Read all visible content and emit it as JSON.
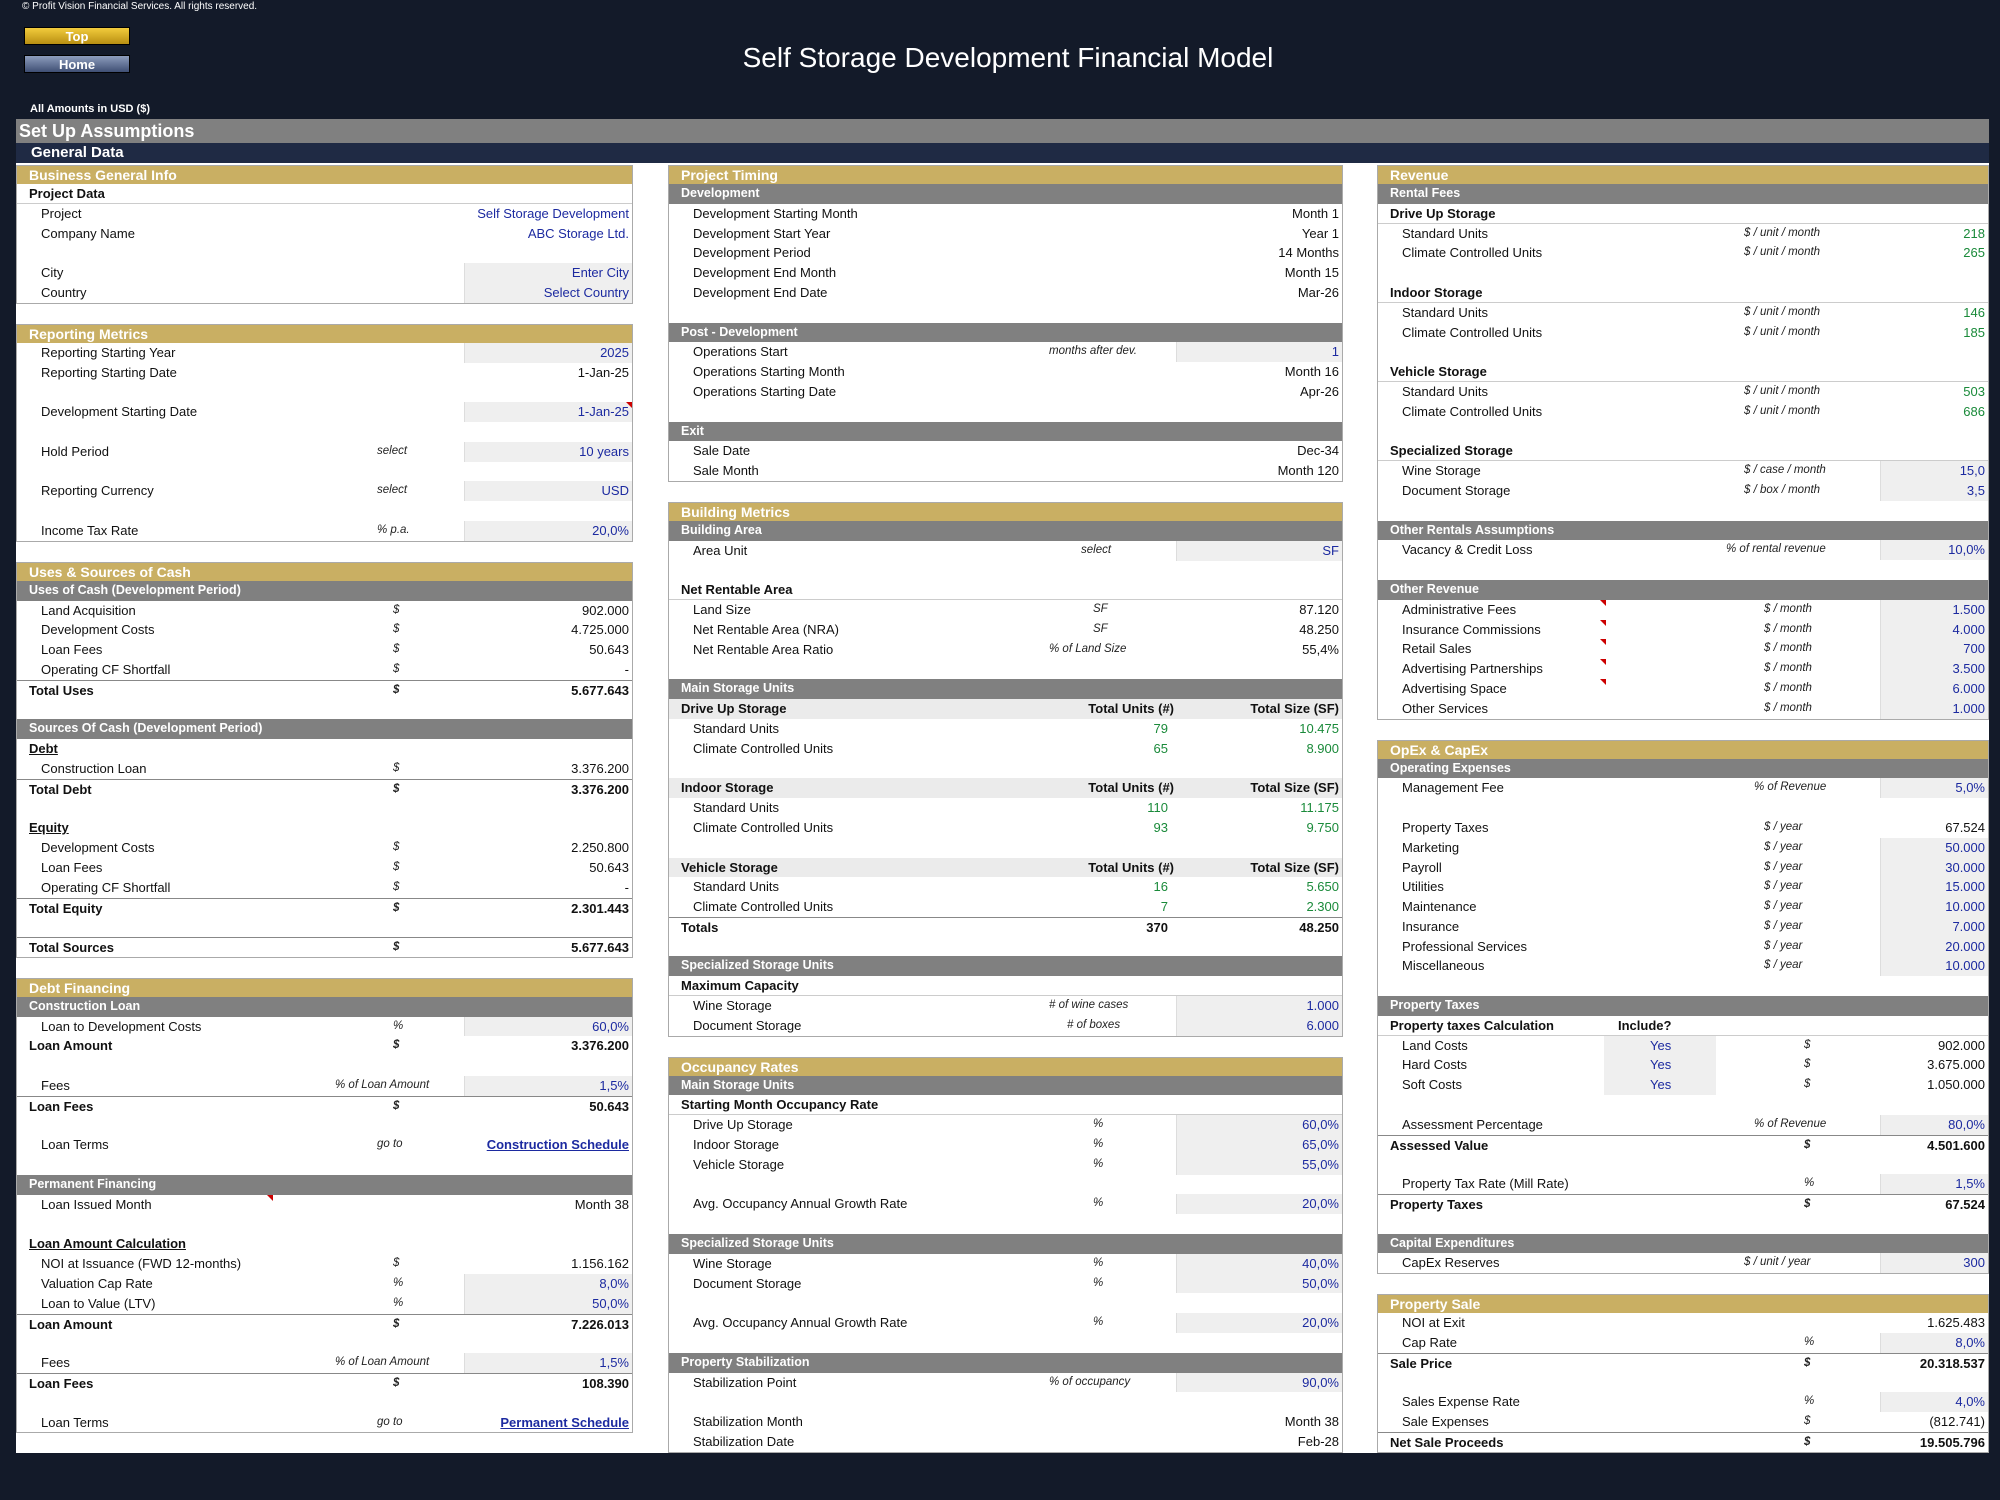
{
  "copyright": "© Profit Vision Financial Services. All rights reserved.",
  "nav": {
    "top": "Top",
    "home": "Home"
  },
  "title": "Self Storage Development Financial Model",
  "amounts": "All Amounts in  USD ($)",
  "band1": "Set Up Assumptions",
  "band2": "General Data",
  "business": {
    "header": "Business General Info",
    "project_data": "Project Data",
    "project_label": "Project",
    "project_value": "Self Storage Development",
    "company_label": "Company Name",
    "company_value": "ABC Storage Ltd.",
    "city_label": "City",
    "city_value": "Enter City",
    "country_label": "Country",
    "country_value": "Select Country"
  },
  "reporting": {
    "header": "Reporting Metrics",
    "start_year_label": "Reporting Starting Year",
    "start_year": "2025",
    "start_date_label": "Reporting Starting Date",
    "start_date": "1-Jan-25",
    "dev_date_label": "Development Starting Date",
    "dev_date": "1-Jan-25",
    "hold_label": "Hold Period",
    "hold_unit": "select",
    "hold": "10 years",
    "currency_label": "Reporting Currency",
    "currency_unit": "select",
    "currency": "USD",
    "tax_label": "Income Tax Rate",
    "tax_unit": "% p.a.",
    "tax": "20,0%"
  },
  "uses": {
    "header": "Uses & Sources of Cash",
    "uses_sub": "Uses of Cash (Development Period)",
    "items": [
      {
        "label": "Land Acquisition",
        "unit": "$",
        "value": "902.000"
      },
      {
        "label": "Development Costs",
        "unit": "$",
        "value": "4.725.000"
      },
      {
        "label": "Loan Fees",
        "unit": "$",
        "value": "50.643"
      },
      {
        "label": "Operating CF Shortfall",
        "unit": "$",
        "value": "-"
      }
    ],
    "total_label": "Total Uses",
    "total_unit": "$",
    "total": "5.677.643",
    "sources_sub": "Sources Of Cash (Development Period)",
    "debt": "Debt",
    "loan_label": "Construction Loan",
    "loan_unit": "$",
    "loan": "3.376.200",
    "total_debt_label": "Total Debt",
    "total_debt_unit": "$",
    "total_debt": "3.376.200",
    "equity": "Equity",
    "equity_items": [
      {
        "label": "Development Costs",
        "unit": "$",
        "value": "2.250.800"
      },
      {
        "label": "Loan Fees",
        "unit": "$",
        "value": "50.643"
      },
      {
        "label": "Operating CF Shortfall",
        "unit": "$",
        "value": "-"
      }
    ],
    "total_equity_label": "Total Equity",
    "total_equity_unit": "$",
    "total_equity": "2.301.443",
    "total_sources_label": "Total Sources",
    "total_sources_unit": "$",
    "total_sources": "5.677.643"
  },
  "debt": {
    "header": "Debt Financing",
    "construction": "Construction Loan",
    "ltdc_label": "Loan to Development Costs",
    "ltdc_unit": "%",
    "ltdc": "60,0%",
    "amount_label": "Loan Amount",
    "amount_unit": "$",
    "amount": "3.376.200",
    "fees_label": "Fees",
    "fees_unit": "% of Loan Amount",
    "fees": "1,5%",
    "loan_fees_label": "Loan Fees",
    "loan_fees_unit": "$",
    "loan_fees": "50.643",
    "terms_label": "Loan Terms",
    "terms_unit": "go to",
    "terms_link": "Construction Schedule",
    "permanent": "Permanent Financing",
    "issued_label": "Loan Issued Month",
    "issued": "Month 38",
    "calc": "Loan Amount Calculation",
    "noi_label": "NOI at Issuance (FWD 12-months)",
    "noi_unit": "$",
    "noi": "1.156.162",
    "cap_label": "Valuation Cap Rate",
    "cap_unit": "%",
    "cap": "8,0%",
    "ltv_label": "Loan to Value (LTV)",
    "ltv_unit": "%",
    "ltv": "50,0%",
    "p_amount_label": "Loan Amount",
    "p_amount_unit": "$",
    "p_amount": "7.226.013",
    "p_fees_label": "Fees",
    "p_fees_unit": "% of Loan Amount",
    "p_fees": "1,5%",
    "p_loan_fees_label": "Loan Fees",
    "p_loan_fees_unit": "$",
    "p_loan_fees": "108.390",
    "p_terms_label": "Loan Terms",
    "p_terms_unit": "go to",
    "p_terms_link": "Permanent Schedule"
  },
  "timing": {
    "header": "Project Timing",
    "dev": "Development",
    "dev_items": [
      {
        "label": "Development Starting Month",
        "value": "Month 1"
      },
      {
        "label": "Development Start Year",
        "value": "Year 1"
      },
      {
        "label": "Development Period",
        "value": "14 Months"
      },
      {
        "label": "Development End Month",
        "value": "Month 15"
      },
      {
        "label": "Development End Date",
        "value": "Mar-26"
      }
    ],
    "post": "Post - Development",
    "ops_start_label": "Operations Start",
    "ops_start_unit": "months after dev.",
    "ops_start": "1",
    "ops_month_label": "Operations Starting Month",
    "ops_month": "Month 16",
    "ops_date_label": "Operations Starting Date",
    "ops_date": "Apr-26",
    "exit": "Exit",
    "sale_date_label": "Sale Date",
    "sale_date": "Dec-34",
    "sale_month_label": "Sale Month",
    "sale_month": "Month 120"
  },
  "building": {
    "header": "Building Metrics",
    "area": "Building Area",
    "area_unit_label": "Area Unit",
    "area_unit_unit": "select",
    "area_unit": "SF",
    "nra": "Net Rentable Area",
    "land_label": "Land Size",
    "land_unit": "SF",
    "land": "87.120",
    "nra_label": "Net Rentable Area (NRA)",
    "nra_unit": "SF",
    "nra_value": "48.250",
    "ratio_label": "Net Rentable Area Ratio",
    "ratio_unit": "% of Land Size",
    "ratio": "55,4%",
    "main_units": "Main Storage Units",
    "col_units": "Total Units (#)",
    "col_size": "Total Size (SF)",
    "groups": [
      {
        "name": "Drive Up Storage",
        "rows": [
          {
            "label": "Standard Units",
            "units": "79",
            "size": "10.475"
          },
          {
            "label": "Climate Controlled Units",
            "units": "65",
            "size": "8.900"
          }
        ]
      },
      {
        "name": "Indoor Storage",
        "rows": [
          {
            "label": "Standard Units",
            "units": "110",
            "size": "11.175"
          },
          {
            "label": "Climate Controlled Units",
            "units": "93",
            "size": "9.750"
          }
        ]
      },
      {
        "name": "Vehicle Storage",
        "rows": [
          {
            "label": "Standard Units",
            "units": "16",
            "size": "5.650"
          },
          {
            "label": "Climate Controlled Units",
            "units": "7",
            "size": "2.300"
          }
        ]
      }
    ],
    "totals_label": "Totals",
    "totals_units": "370",
    "totals_size": "48.250",
    "spec": "Specialized Storage Units",
    "max_cap": "Maximum Capacity",
    "wine_label": "Wine Storage",
    "wine_unit": "# of wine cases",
    "wine": "1.000",
    "doc_label": "Document Storage",
    "doc_unit": "# of boxes",
    "doc": "6.000"
  },
  "occupancy": {
    "header": "Occupancy Rates",
    "main": "Main Storage Units",
    "start": "Starting Month Occupancy Rate",
    "drive_label": "Drive Up Storage",
    "drive_unit": "%",
    "drive": "60,0%",
    "indoor_label": "Indoor Storage",
    "indoor_unit": "%",
    "indoor": "65,0%",
    "vehicle_label": "Vehicle Storage",
    "vehicle_unit": "%",
    "vehicle": "55,0%",
    "growth_label": "Avg. Occupancy Annual Growth Rate",
    "growth_unit": "%",
    "growth": "20,0%",
    "spec": "Specialized Storage Units",
    "wine_label": "Wine Storage",
    "wine_unit": "%",
    "wine": "40,0%",
    "doc_label": "Document Storage",
    "doc_unit": "%",
    "doc": "50,0%",
    "growth2_label": "Avg. Occupancy Annual Growth Rate",
    "growth2_unit": "%",
    "growth2": "20,0%",
    "stab": "Property Stabilization",
    "stab_point_label": "Stabilization Point",
    "stab_point_unit": "% of occupancy",
    "stab_point": "90,0%",
    "stab_month_label": "Stabilization Month",
    "stab_month": "Month 38",
    "stab_date_label": "Stabilization Date",
    "stab_date": "Feb-28"
  },
  "revenue": {
    "header": "Revenue",
    "rental": "Rental Fees",
    "groups": [
      {
        "name": "Drive Up Storage",
        "rows": [
          {
            "label": "Standard Units",
            "unit": "$ / unit / month",
            "value": "218"
          },
          {
            "label": "Climate Controlled Units",
            "unit": "$ / unit / month",
            "value": "265"
          }
        ]
      },
      {
        "name": "Indoor Storage",
        "rows": [
          {
            "label": "Standard Units",
            "unit": "$ / unit / month",
            "value": "146"
          },
          {
            "label": "Climate Controlled Units",
            "unit": "$ / unit / month",
            "value": "185"
          }
        ]
      },
      {
        "name": "Vehicle Storage",
        "rows": [
          {
            "label": "Standard Units",
            "unit": "$ / unit / month",
            "value": "503"
          },
          {
            "label": "Climate Controlled Units",
            "unit": "$ / unit / month",
            "value": "686"
          }
        ]
      }
    ],
    "specialized": "Specialized Storage",
    "wine_label": "Wine Storage",
    "wine_unit": "$ / case / month",
    "wine": "15,0",
    "doc_label": "Document Storage",
    "doc_unit": "$ / box / month",
    "doc": "3,5",
    "other_rentals": "Other Rentals Assumptions",
    "vacancy_label": "Vacancy & Credit Loss",
    "vacancy_unit": "% of rental revenue",
    "vacancy": "10,0%",
    "other_rev": "Other Revenue",
    "other_items": [
      {
        "label": "Administrative Fees",
        "unit": "$ / month",
        "value": "1.500"
      },
      {
        "label": "Insurance Commissions",
        "unit": "$ / month",
        "value": "4.000"
      },
      {
        "label": "Retail Sales",
        "unit": "$ / month",
        "value": "700"
      },
      {
        "label": "Advertising Partnerships",
        "unit": "$ / month",
        "value": "3.500"
      },
      {
        "label": "Advertising Space",
        "unit": "$ / month",
        "value": "6.000"
      },
      {
        "label": "Other Services",
        "unit": "$ / month",
        "value": "1.000"
      }
    ]
  },
  "opex": {
    "header": "OpEx & CapEx",
    "opex_sub": "Operating Expenses",
    "mgmt_label": "Management Fee",
    "mgmt_unit": "% of Revenue",
    "mgmt": "5,0%",
    "items": [
      {
        "label": "Property Taxes",
        "unit": "$ / year",
        "value": "67.524"
      },
      {
        "label": "Marketing",
        "unit": "$ / year",
        "value": "50.000"
      },
      {
        "label": "Payroll",
        "unit": "$ / year",
        "value": "30.000"
      },
      {
        "label": "Utilities",
        "unit": "$ / year",
        "value": "15.000"
      },
      {
        "label": "Maintenance",
        "unit": "$ / year",
        "value": "10.000"
      },
      {
        "label": "Insurance",
        "unit": "$ / year",
        "value": "7.000"
      },
      {
        "label": "Professional Services",
        "unit": "$ / year",
        "value": "20.000"
      },
      {
        "label": "Miscellaneous",
        "unit": "$ / year",
        "value": "10.000"
      }
    ],
    "ptax": "Property Taxes",
    "ptax_calc": "Property taxes Calculation",
    "include": "Include?",
    "ptax_items": [
      {
        "label": "Land Costs",
        "include": "Yes",
        "unit": "$",
        "value": "902.000"
      },
      {
        "label": "Hard Costs",
        "include": "Yes",
        "unit": "$",
        "value": "3.675.000"
      },
      {
        "label": "Soft Costs",
        "include": "Yes",
        "unit": "$",
        "value": "1.050.000"
      }
    ],
    "assess_pct_label": "Assessment Percentage",
    "assess_pct_unit": "% of Revenue",
    "assess_pct": "80,0%",
    "assessed_label": "Assessed Value",
    "assessed_unit": "$",
    "assessed": "4.501.600",
    "mill_label": "Property Tax Rate (Mill Rate)",
    "mill_unit": "%",
    "mill": "1,5%",
    "ptaxes_label": "Property Taxes",
    "ptaxes_unit": "$",
    "ptaxes": "67.524",
    "capex": "Capital Expenditures",
    "capex_label": "CapEx Reserves",
    "capex_unit": "$ / unit / year",
    "capex_value": "300"
  },
  "sale": {
    "header": "Property Sale",
    "noi_label": "NOI at Exit",
    "noi": "1.625.483",
    "cap_label": "Cap Rate",
    "cap_unit": "%",
    "cap": "8,0%",
    "price_label": "Sale Price",
    "price_unit": "$",
    "price": "20.318.537",
    "exp_rate_label": "Sales Expense Rate",
    "exp_rate_unit": "%",
    "exp_rate": "4,0%",
    "exp_label": "Sale Expenses",
    "exp_unit": "$",
    "exp": "(812.741)",
    "net_label": "Net Sale Proceeds",
    "net_unit": "$",
    "net": "19.505.796"
  }
}
